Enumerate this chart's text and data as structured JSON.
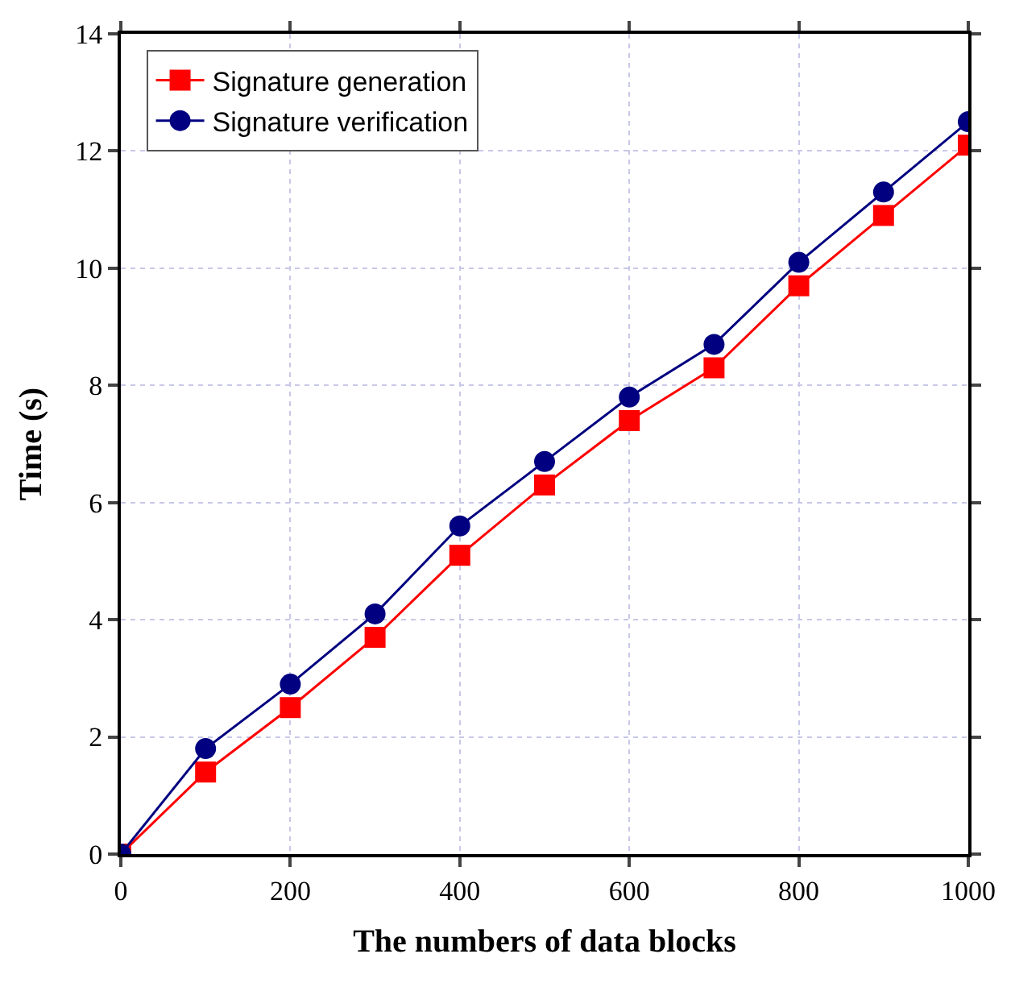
{
  "chart_data": {
    "type": "line",
    "xlabel": "The numbers of data blocks",
    "ylabel": "Time (s)",
    "x": [
      0,
      100,
      200,
      300,
      400,
      500,
      600,
      700,
      800,
      900,
      1000
    ],
    "series": [
      {
        "name": "Signature generation",
        "color": "#ff0000",
        "marker": "square",
        "values": [
          0,
          1.4,
          2.5,
          3.7,
          5.1,
          6.3,
          7.4,
          8.3,
          9.7,
          10.9,
          12.1
        ]
      },
      {
        "name": "Signature verification",
        "color": "#000080",
        "marker": "circle",
        "values": [
          0,
          1.8,
          2.9,
          4.1,
          5.6,
          6.7,
          7.8,
          8.7,
          10.1,
          11.3,
          12.5
        ]
      }
    ],
    "xlim": [
      0,
      1000
    ],
    "xticks": [
      0,
      200,
      400,
      600,
      800,
      1000
    ],
    "ylim": [
      0,
      14
    ],
    "yticks": [
      0,
      2,
      4,
      6,
      8,
      10,
      12,
      14
    ],
    "grid": true,
    "legend": "top left",
    "line_style": "solid"
  }
}
